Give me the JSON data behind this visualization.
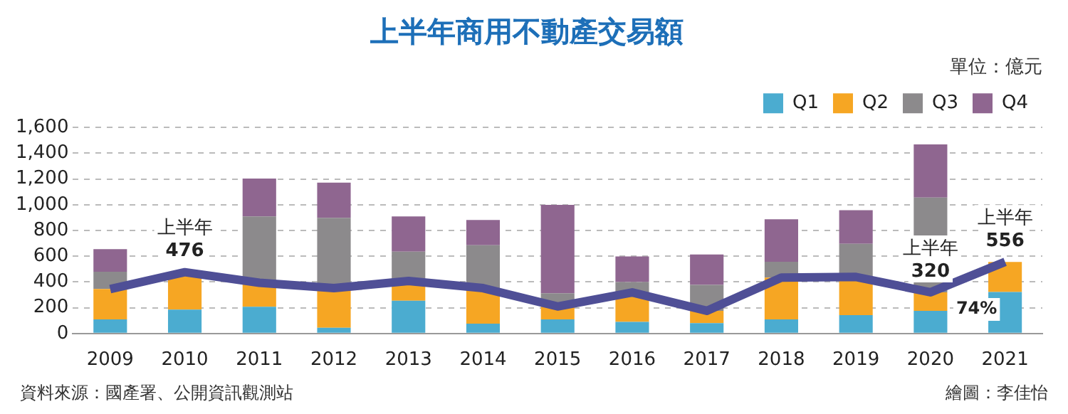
{
  "chart_data": {
    "type": "bar",
    "title": "上半年商用不動產交易額",
    "subtitle": "單位：億元",
    "categories": [
      "2009",
      "2010",
      "2011",
      "2012",
      "2013",
      "2014",
      "2015",
      "2016",
      "2017",
      "2018",
      "2019",
      "2020",
      "2021"
    ],
    "stacked": true,
    "series": [
      {
        "name": "Q1",
        "color": "#4bacd0",
        "values": [
          110,
          185,
          207,
          45,
          255,
          76,
          109,
          90,
          81,
          109,
          143,
          176,
          322
        ]
      },
      {
        "name": "Q2",
        "color": "#f6a623",
        "values": [
          235,
          291,
          187,
          307,
          153,
          276,
          101,
          229,
          95,
          325,
          296,
          144,
          234
        ]
      },
      {
        "name": "Q3",
        "color": "#8c8a8c",
        "values": [
          135,
          null,
          515,
          546,
          227,
          333,
          103,
          81,
          202,
          123,
          258,
          735,
          null
        ]
      },
      {
        "name": "Q4",
        "color": "#8f6690",
        "values": [
          175,
          null,
          294,
          274,
          274,
          196,
          686,
          199,
          235,
          330,
          260,
          414,
          null
        ]
      },
      {
        "type": "line",
        "color": "#4f4f96",
        "values": [
          345,
          476,
          394,
          352,
          408,
          352,
          210,
          319,
          176,
          434,
          439,
          320,
          556
        ]
      }
    ],
    "ylim": [
      0,
      1600
    ],
    "yticks": [
      {
        "value": 0,
        "label": "0"
      },
      {
        "value": 200,
        "label": "200"
      },
      {
        "value": 400,
        "label": "400"
      },
      {
        "value": 600,
        "label": "600"
      },
      {
        "value": 800,
        "label": "800"
      },
      {
        "value": 1000,
        "label": "1,000"
      },
      {
        "value": 1200,
        "label": "1,200"
      },
      {
        "value": 1400,
        "label": "1,400"
      },
      {
        "value": 1600,
        "label": "1,600"
      }
    ],
    "grid": "y",
    "legend": "top right",
    "marker": "none",
    "line_style": "solid",
    "annotations": [
      {
        "text": "上半年\n476",
        "x": "2010",
        "y": 476
      },
      {
        "text": "上半年\n320",
        "x": "2020",
        "y": 320
      },
      {
        "text": "上半年\n556",
        "x": "2021",
        "y": 556
      },
      {
        "text": "74%",
        "x": "2020",
        "y": 320
      },
      "資料來源：國產署、公開資訊觀測站",
      "繪圖：李佳怡"
    ]
  }
}
